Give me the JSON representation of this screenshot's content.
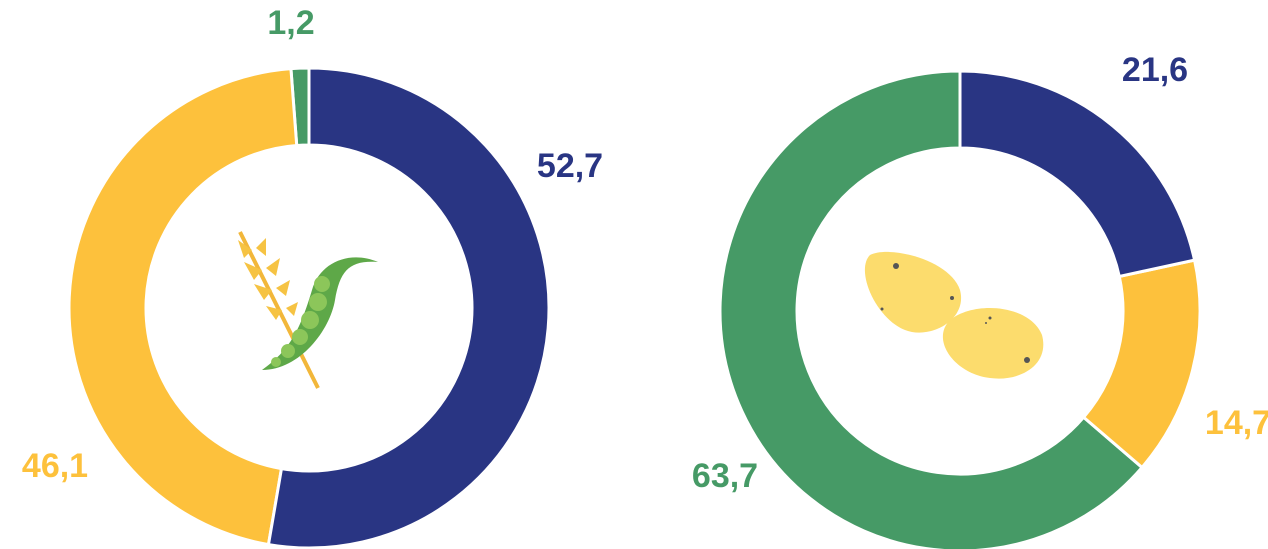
{
  "chart_data": [
    {
      "type": "pie",
      "values": [
        52.7,
        46.1,
        1.2
      ],
      "value_labels": [
        "52,7",
        "46,1",
        "1,2"
      ],
      "colors": [
        "#293583",
        "#fdc13c",
        "#469a66"
      ],
      "donut": true
    },
    {
      "type": "pie",
      "values": [
        21.6,
        14.7,
        63.7
      ],
      "value_labels": [
        "21,6",
        "14,7",
        "63,7"
      ],
      "colors": [
        "#293583",
        "#fdc13c",
        "#469a66"
      ],
      "donut": true
    }
  ]
}
